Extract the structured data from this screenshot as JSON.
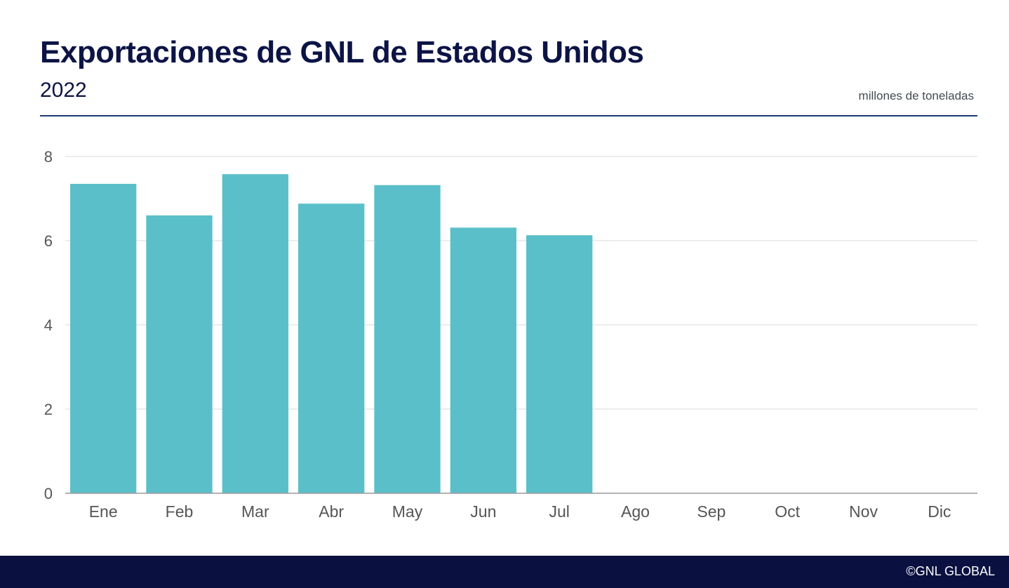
{
  "header": {
    "title": "Exportaciones de GNL de Estados Unidos",
    "subtitle": "2022",
    "unit": "millones de toneladas"
  },
  "footer": {
    "copyright": "©GNL GLOBAL"
  },
  "colors": {
    "bar": "#5bbfc9",
    "title": "#0c1445",
    "divider": "#1f3b73",
    "grid": "#d9d9d9",
    "axis_text": "#555555",
    "footer_bg": "#0a1140"
  },
  "chart_data": {
    "type": "bar",
    "title": "Exportaciones de GNL de Estados Unidos",
    "subtitle": "2022",
    "ylabel": "millones de toneladas",
    "categories": [
      "Ene",
      "Feb",
      "Mar",
      "Abr",
      "May",
      "Jun",
      "Jul",
      "Ago",
      "Sep",
      "Oct",
      "Nov",
      "Dic"
    ],
    "values": [
      7.35,
      6.6,
      7.58,
      6.88,
      7.32,
      6.31,
      6.13,
      null,
      null,
      null,
      null,
      null
    ],
    "ylim": [
      0,
      8
    ],
    "yticks": [
      0,
      2,
      4,
      6,
      8
    ],
    "grid": true,
    "legend": "none"
  }
}
